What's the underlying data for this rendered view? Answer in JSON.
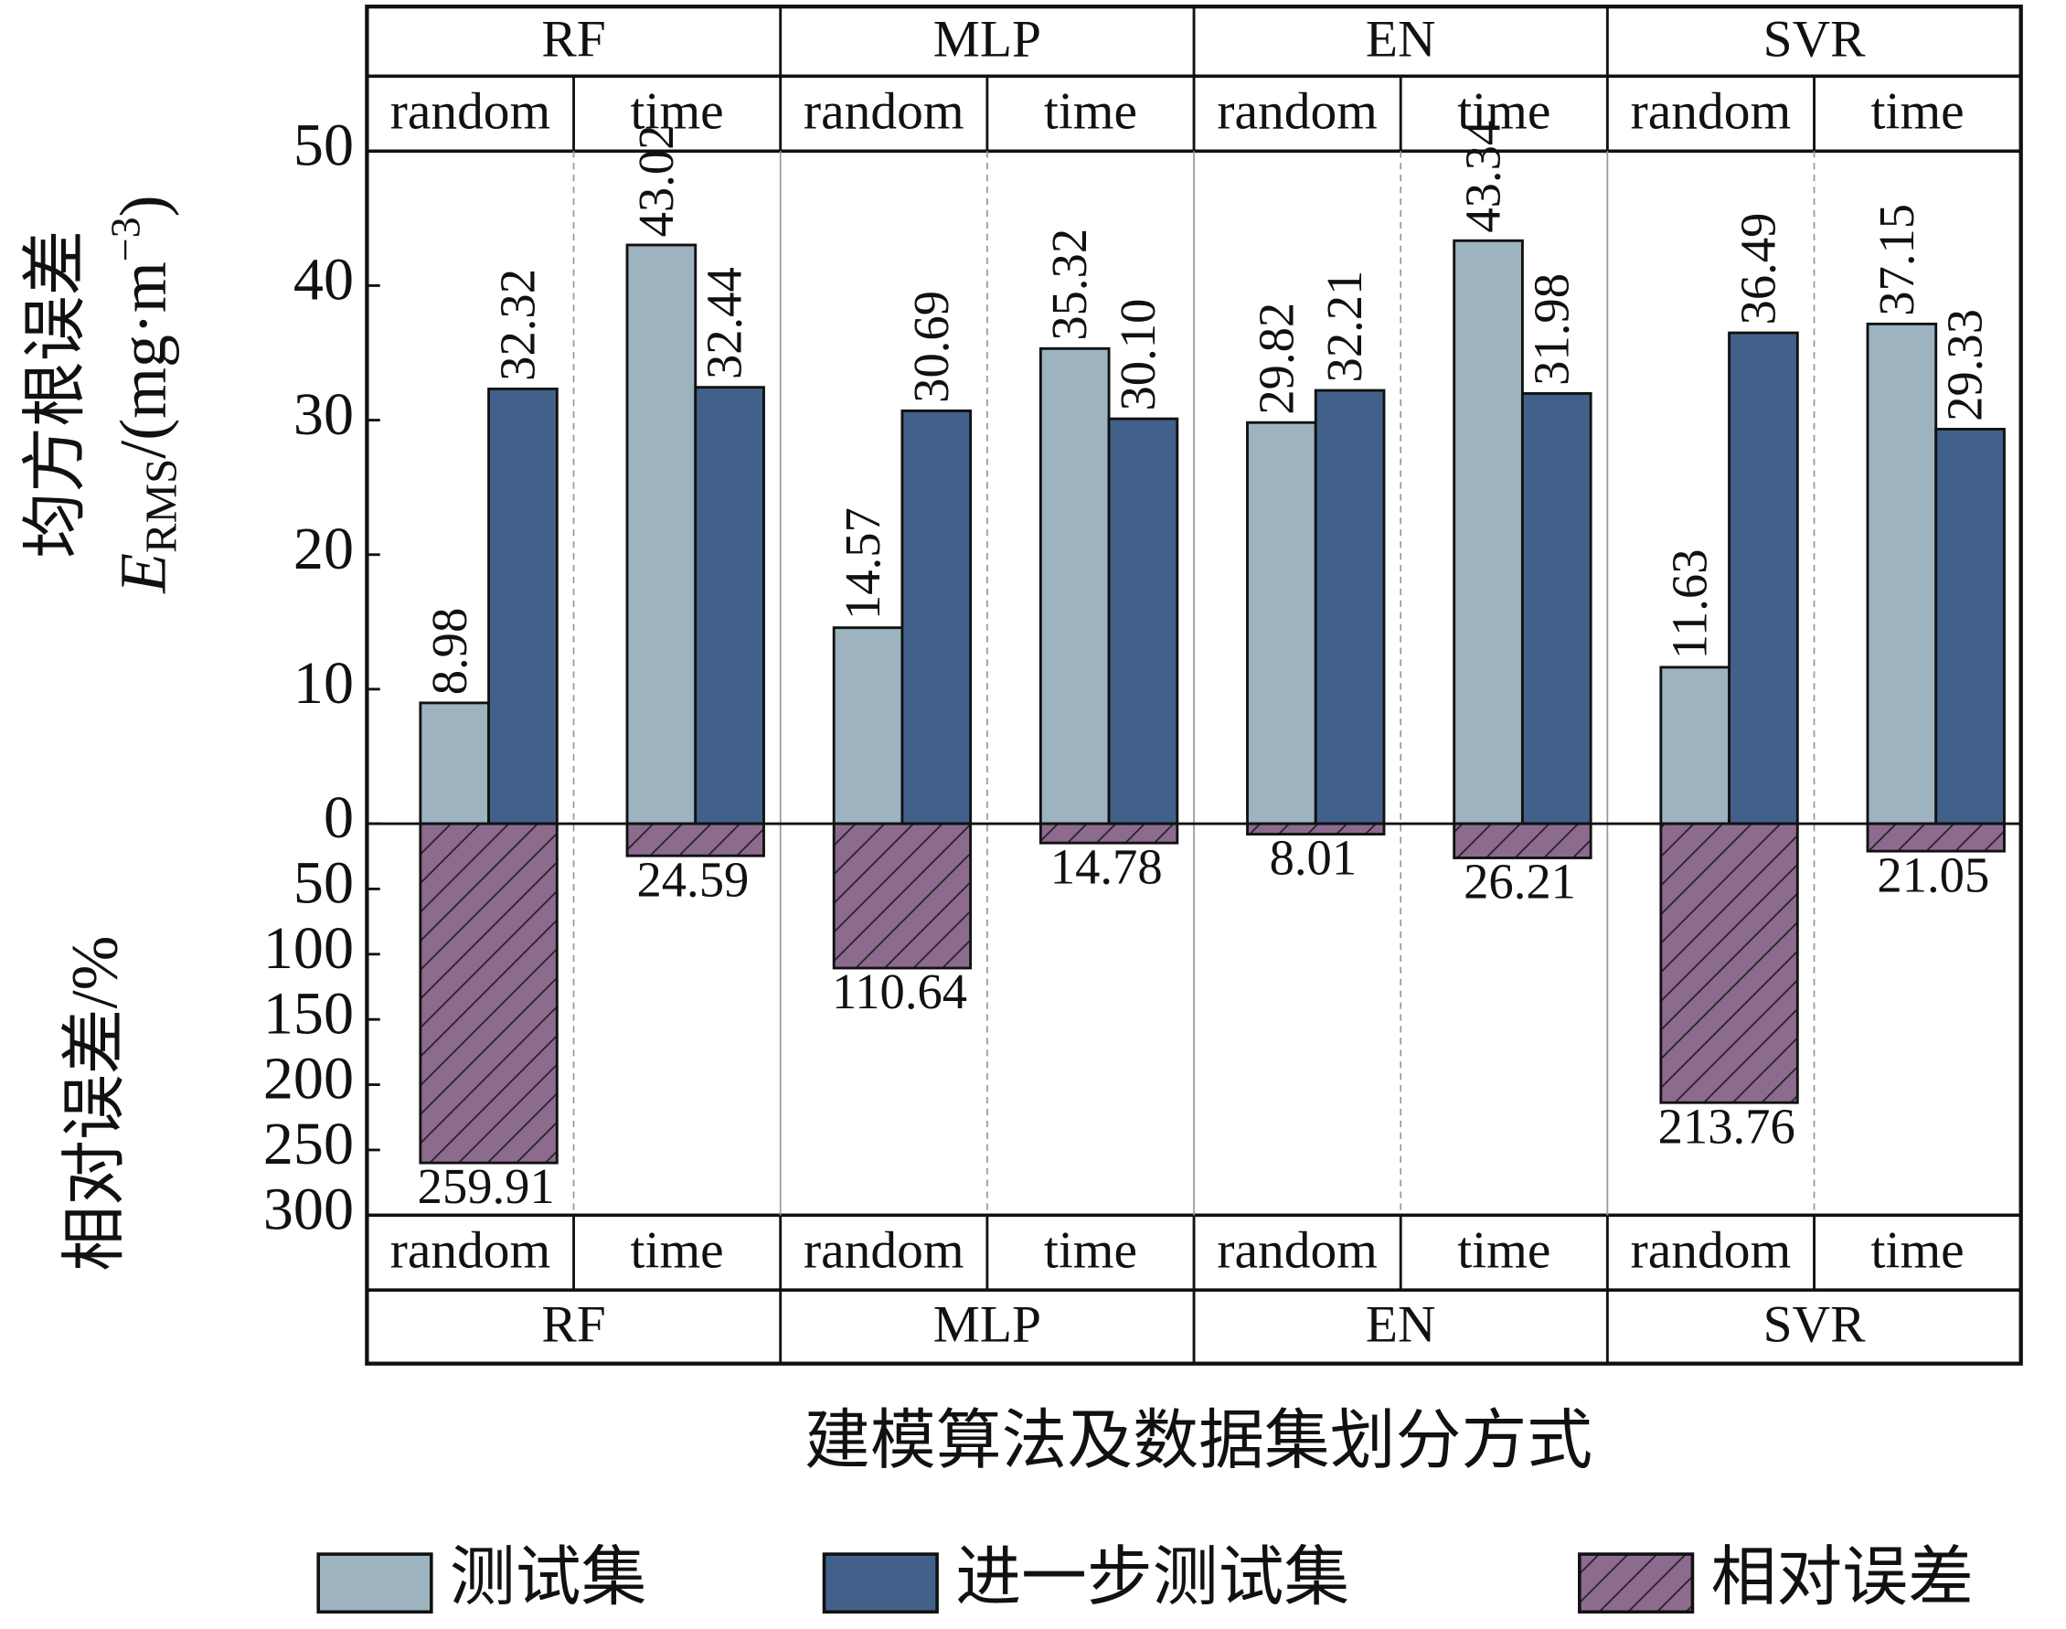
{
  "chart_data": {
    "type": "bar",
    "ylabel": "均方根误差",
    "ylabel_line2": [
      "E",
      "RMS",
      "/(mg·m",
      "−3",
      ")"
    ],
    "y2label": "相对误差/%",
    "xlabel": "建模算法及数据集划分方式",
    "groups": [
      "RF",
      "MLP",
      "EN",
      "SVR"
    ],
    "categories": [
      "random",
      "time",
      "random",
      "time",
      "random",
      "time",
      "random",
      "time"
    ],
    "series": [
      {
        "name": "测试集",
        "color": "#9db3c0",
        "values": [
          8.98,
          43.02,
          14.57,
          35.32,
          29.82,
          43.34,
          11.63,
          37.15
        ],
        "value_labels": [
          "8.98",
          "43.02",
          "14.57",
          "35.32",
          "29.82",
          "43.34",
          "11.63",
          "37.15"
        ]
      },
      {
        "name": "进一步测试集",
        "color": "#42618a",
        "values": [
          32.32,
          32.44,
          30.69,
          30.1,
          32.21,
          31.98,
          36.49,
          29.33
        ],
        "value_labels": [
          "32.32",
          "32.44",
          "30.69",
          "30.10",
          "32.21",
          "31.98",
          "36.49",
          "29.33"
        ]
      },
      {
        "name": "相对误差",
        "color": "#8c6b8f",
        "axis": "y2",
        "hatch": true,
        "values": [
          259.91,
          24.59,
          110.64,
          14.78,
          8.01,
          26.21,
          213.76,
          21.05
        ]
      }
    ],
    "ylim": [
      0,
      50
    ],
    "yticks": [
      0,
      10,
      20,
      30,
      40,
      50
    ],
    "y2lim": [
      0,
      300
    ],
    "y2_inverted": true,
    "y2ticks": [
      50,
      100,
      150,
      200,
      250,
      300
    ]
  }
}
